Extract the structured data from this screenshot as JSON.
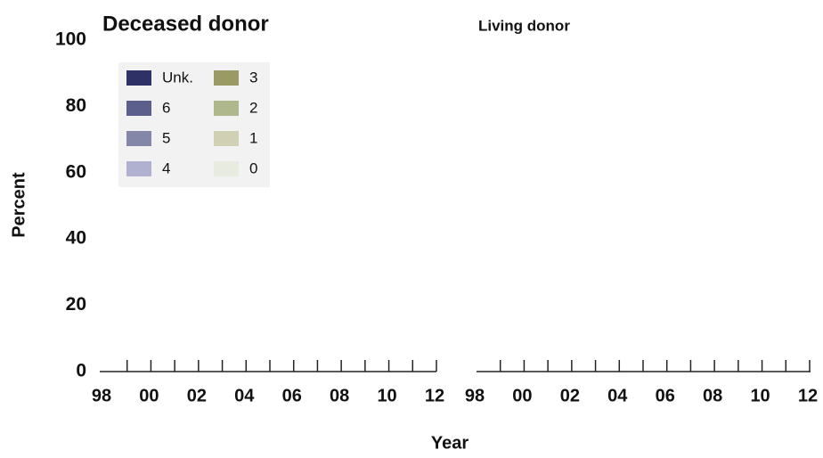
{
  "chart_data": [
    {
      "type": "bar",
      "title": "Deceased donor",
      "x_label": "Year",
      "y_label": "Percent",
      "stacked": true,
      "categories": [
        "98",
        null,
        "00",
        null,
        "02",
        null,
        "04",
        null,
        "06",
        null,
        "08",
        null,
        "10",
        null,
        "12"
      ],
      "ylim": [
        0,
        100
      ],
      "yticks": [
        0,
        20,
        40,
        60,
        80,
        100
      ],
      "series": [
        {
          "name": "Unk.",
          "color": "#2e3166",
          "values": [
            null,
            null,
            null,
            null,
            null,
            null,
            null,
            null,
            null,
            null,
            null,
            null,
            null,
            null,
            null
          ]
        },
        {
          "name": "6",
          "color": "#5c5e8c",
          "values": [
            null,
            null,
            null,
            null,
            null,
            null,
            null,
            null,
            null,
            null,
            null,
            null,
            null,
            null,
            null
          ]
        },
        {
          "name": "5",
          "color": "#8587a8",
          "values": [
            null,
            null,
            null,
            null,
            null,
            null,
            null,
            null,
            null,
            null,
            null,
            null,
            null,
            null,
            null
          ]
        },
        {
          "name": "4",
          "color": "#b0b0d0",
          "values": [
            null,
            null,
            null,
            null,
            null,
            null,
            null,
            null,
            null,
            null,
            null,
            null,
            null,
            null,
            null
          ]
        },
        {
          "name": "3",
          "color": "#9a9a64",
          "values": [
            null,
            null,
            null,
            null,
            null,
            null,
            null,
            null,
            null,
            null,
            null,
            null,
            null,
            null,
            null
          ]
        },
        {
          "name": "2",
          "color": "#afb88c",
          "values": [
            null,
            null,
            null,
            null,
            null,
            null,
            null,
            null,
            null,
            null,
            null,
            null,
            null,
            null,
            null
          ]
        },
        {
          "name": "1",
          "color": "#cfd0b4",
          "values": [
            null,
            null,
            null,
            null,
            null,
            null,
            null,
            null,
            null,
            null,
            null,
            null,
            null,
            null,
            null
          ]
        },
        {
          "name": "0",
          "color": "#e8ebe0",
          "values": [
            null,
            null,
            null,
            null,
            null,
            null,
            null,
            null,
            null,
            null,
            null,
            null,
            null,
            null,
            null
          ]
        }
      ]
    },
    {
      "type": "bar",
      "title": "Living donor",
      "categories": [
        "98",
        null,
        "00",
        null,
        "02",
        null,
        "04",
        null,
        "06",
        null,
        "08",
        null,
        "10",
        null,
        "12"
      ],
      "ylim": [
        0,
        100
      ]
    }
  ]
}
